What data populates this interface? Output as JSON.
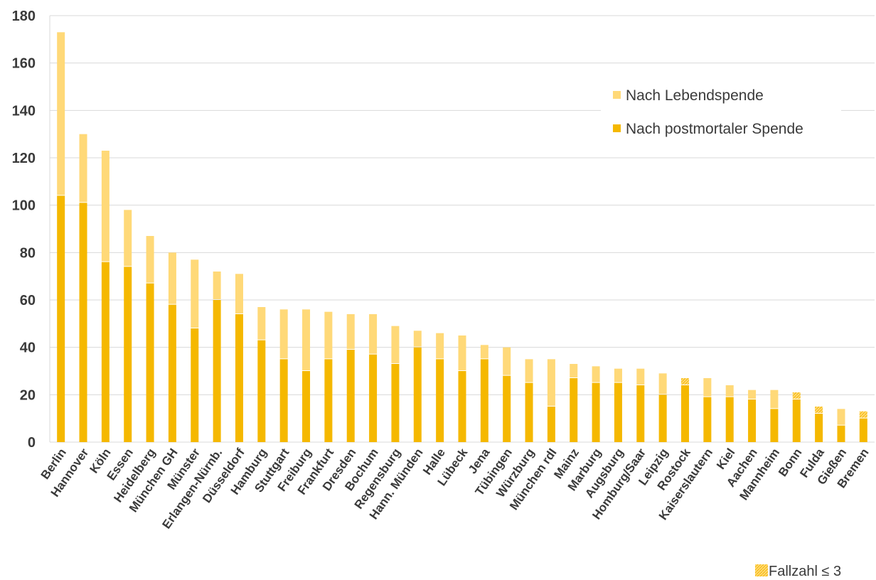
{
  "chart_data": {
    "type": "bar",
    "stacked": true,
    "ylim": [
      0,
      180
    ],
    "yticks": [
      0,
      20,
      40,
      60,
      80,
      100,
      120,
      140,
      160,
      180
    ],
    "grid": true,
    "legend_position": "top-right",
    "categories": [
      "Berlin",
      "Hannover",
      "Köln",
      "Essen",
      "Heidelberg",
      "München GH",
      "Münster",
      "Erlangen-Nürnb.",
      "Düsseldorf",
      "Hamburg",
      "Stuttgart",
      "Freiburg",
      "Frankfurt",
      "Dresden",
      "Bochum",
      "Regensburg",
      "Hann. Münden",
      "Halle",
      "Lübeck",
      "Jena",
      "Tübingen",
      "Würzburg",
      "München rdI",
      "Mainz",
      "Marburg",
      "Augsburg",
      "Homburg/Saar",
      "Leipzig",
      "Rostock",
      "Kaiserslautern",
      "Kiel",
      "Aachen",
      "Mannheim",
      "Bonn",
      "Fulda",
      "Gießen",
      "Bremen"
    ],
    "series": [
      {
        "name": "Nach postmortaler Spende",
        "color": "#F5B800",
        "values": [
          104,
          101,
          76,
          74,
          67,
          58,
          48,
          60,
          54,
          43,
          35,
          30,
          35,
          39,
          37,
          33,
          40,
          35,
          30,
          35,
          28,
          25,
          15,
          27,
          25,
          25,
          24,
          20,
          24,
          19,
          19,
          18,
          14,
          18,
          12,
          7,
          10
        ]
      },
      {
        "name": "Nach Lebendspende",
        "color": "#FFD978",
        "values": [
          69,
          29,
          47,
          24,
          20,
          22,
          29,
          12,
          17,
          14,
          21,
          26,
          20,
          15,
          17,
          16,
          7,
          11,
          15,
          6,
          12,
          10,
          20,
          6,
          7,
          6,
          7,
          9,
          3,
          8,
          5,
          4,
          8,
          3,
          3,
          7,
          3
        ]
      }
    ],
    "hatched_note": {
      "label": "Fallzahl ≤ 3",
      "hatched_categories": [
        "Rostock",
        "Bonn",
        "Fulda",
        "Bremen"
      ]
    }
  },
  "legend": {
    "lebend": "Nach Lebendspende",
    "postmortal": "Nach postmortaler Spende"
  },
  "note": {
    "label": "Fallzahl ≤ 3"
  }
}
